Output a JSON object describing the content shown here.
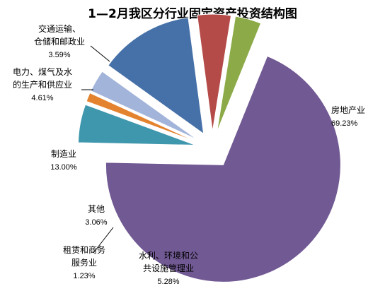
{
  "chart_data": {
    "type": "pie",
    "title": "1—2月我区分行业固定资产投资结构图",
    "series": [
      {
        "lines": [
          "房地产业"
        ],
        "value": 69.23,
        "label": "69.23%",
        "color": "#715993"
      },
      {
        "lines": [
          "水利、环境和公",
          "共设施管理业"
        ],
        "value": 5.28,
        "label": "5.28%",
        "color": "#3f97ad"
      },
      {
        "lines": [
          "租赁和商务",
          "服务业"
        ],
        "value": 1.23,
        "label": "1.23%",
        "color": "#e4832f"
      },
      {
        "lines": [
          "其他"
        ],
        "value": 3.06,
        "label": "3.06%",
        "color": "#a3b4da"
      },
      {
        "lines": [
          "制造业"
        ],
        "value": 13.0,
        "label": "13.00%",
        "color": "#4671a8"
      },
      {
        "lines": [
          "电力、煤气及水",
          "的生产和供应业"
        ],
        "value": 4.61,
        "label": "4.61%",
        "color": "#b54b48"
      },
      {
        "lines": [
          "交通运输、",
          "仓储和邮政业"
        ],
        "value": 3.59,
        "label": "3.59%",
        "color": "#8cab48"
      }
    ],
    "start_angle_deg": 22,
    "direction": "clockwise",
    "exploded": true,
    "data_labels": "outside"
  }
}
